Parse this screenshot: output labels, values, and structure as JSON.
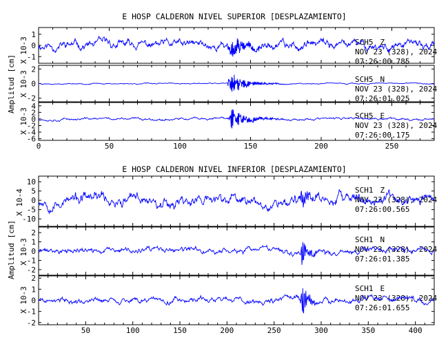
{
  "colors": {
    "trace": "#0000ff",
    "axis": "#000000",
    "background": "#ffffff"
  },
  "chart_data": [
    {
      "type": "line",
      "title": "E HOSP CALDERON NIVEL SUPERIOR [DESPLAZAMIENTO]",
      "ylabel": "Amplitud [cm]",
      "xlim": [
        0,
        280
      ],
      "xticks": [
        "0",
        "50",
        "100",
        "150",
        "200",
        "250"
      ],
      "x_tick_values": [
        0,
        50,
        100,
        150,
        200,
        250
      ],
      "grid": false,
      "event_start": 134,
      "event_end": 175,
      "channels": [
        {
          "station": "SCH5",
          "component": "Z",
          "date": "NOV 23 (328), 2024",
          "time": "07:26:00.785",
          "scale": "X 10-3",
          "ylim": [
            -1.6,
            1.6
          ],
          "yticks": [
            "1",
            "0",
            "-1"
          ],
          "ytick_values": [
            1,
            0,
            -1
          ],
          "noise": 0.45,
          "event_amp": 1.2,
          "seed": 11
        },
        {
          "station": "SCH5",
          "component": "N",
          "date": "NOV 23 (328), 2024",
          "time": "07:26:01.025",
          "scale": "X 10-3",
          "ylim": [
            -2.5,
            2.5
          ],
          "yticks": [
            "2",
            "0",
            "-2"
          ],
          "ytick_values": [
            2,
            0,
            -2
          ],
          "noise": 0.08,
          "event_amp": 2.0,
          "seed": 23
        },
        {
          "station": "SCH5",
          "component": "E",
          "date": "NOV 23 (328), 2024",
          "time": "07:26:00.175",
          "scale": "X 10-3",
          "ylim": [
            -6.5,
            5.0
          ],
          "yticks": [
            "4",
            "2",
            "0",
            "-2",
            "-4",
            "-6"
          ],
          "ytick_values": [
            4,
            2,
            0,
            -2,
            -4,
            -6
          ],
          "noise": 0.4,
          "event_amp": 4.5,
          "seed": 37
        }
      ]
    },
    {
      "type": "line",
      "title": "E HOSP CALDERON NIVEL INFERIOR [DESPLAZAMIENTO]",
      "ylabel": "Amplitud [cm]",
      "xlim": [
        0,
        420
      ],
      "xticks": [
        "50",
        "100",
        "150",
        "200",
        "250",
        "300",
        "350",
        "400"
      ],
      "x_tick_values": [
        50,
        100,
        150,
        200,
        250,
        300,
        350,
        400
      ],
      "grid": false,
      "event_start": 278,
      "event_end": 305,
      "channels": [
        {
          "station": "SCH1",
          "component": "Z",
          "date": "NOV 23 (328), 2024",
          "time": "07:26:00.565",
          "scale": "X 10-4",
          "ylim": [
            -14,
            13
          ],
          "yticks": [
            "10",
            "5",
            "0",
            "-5",
            "-10"
          ],
          "ytick_values": [
            10,
            5,
            0,
            -5,
            -10
          ],
          "noise": 3.5,
          "event_amp": 9.0,
          "seed": 53
        },
        {
          "station": "SCH1",
          "component": "N",
          "date": "NOV 23 (328), 2024",
          "time": "07:26:01.385",
          "scale": "X 10-3",
          "ylim": [
            -2.6,
            2.6
          ],
          "yticks": [
            "2",
            "1",
            "0",
            "-1",
            "-2"
          ],
          "ytick_values": [
            2,
            1,
            0,
            -1,
            -2
          ],
          "noise": 0.35,
          "event_amp": 2.2,
          "seed": 71
        },
        {
          "station": "SCH1",
          "component": "E",
          "date": "NOV 23 (328), 2024",
          "time": "07:26:01.655",
          "scale": "X 10-3",
          "ylim": [
            -2.2,
            2.2
          ],
          "yticks": [
            "2",
            "1",
            "0",
            "-1",
            "-2"
          ],
          "ytick_values": [
            2,
            1,
            0,
            -1,
            -2
          ],
          "noise": 0.3,
          "event_amp": 1.9,
          "seed": 89
        }
      ]
    }
  ]
}
